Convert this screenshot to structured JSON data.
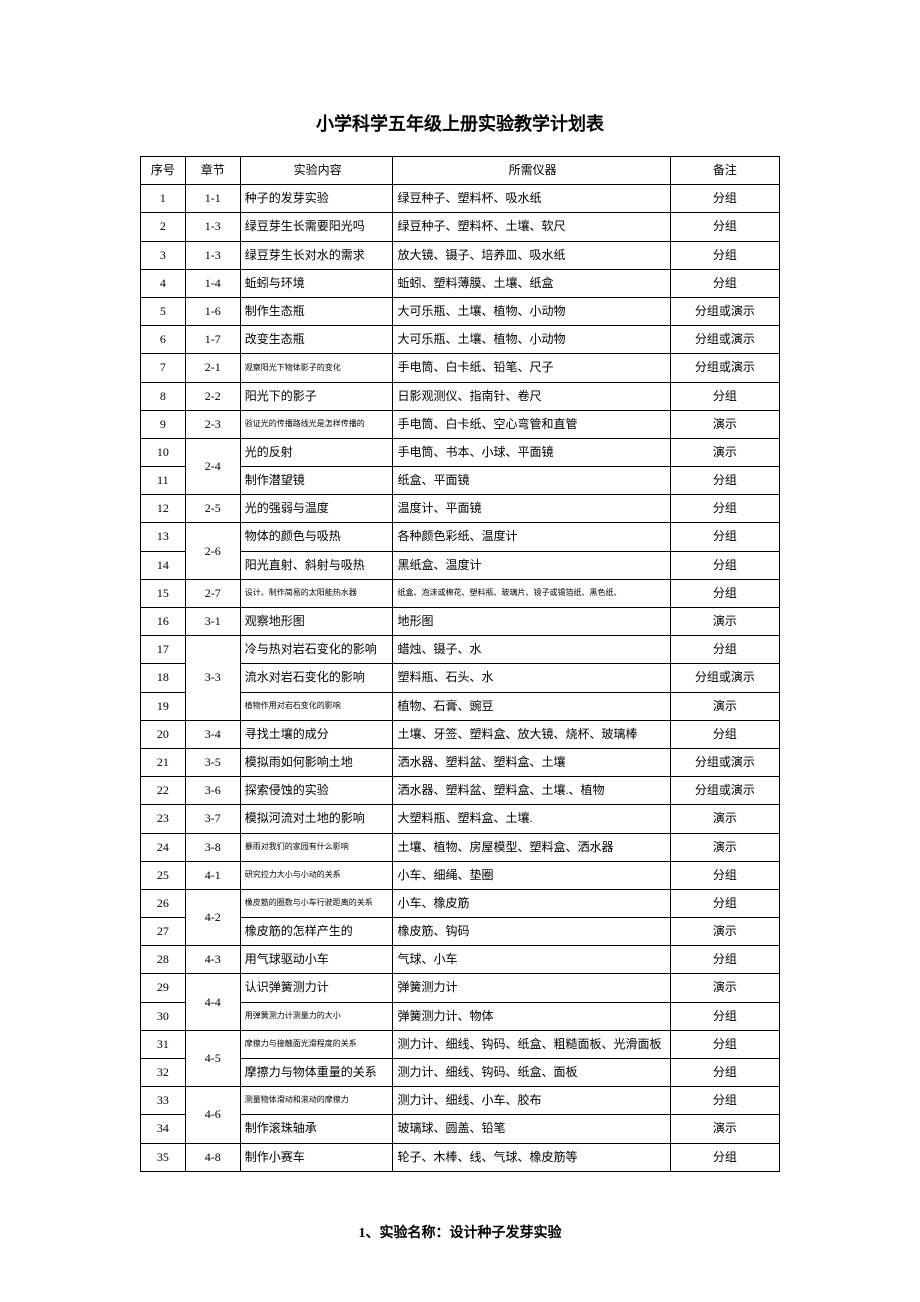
{
  "title": "小学科学五年级上册实验教学计划表",
  "columns": {
    "seq": "序号",
    "chapter": "章节",
    "content": "实验内容",
    "equipment": "所需仪器",
    "note": "备注"
  },
  "rows": [
    {
      "seq": "1",
      "chapter": "1-1",
      "content": "种子的发芽实验",
      "equipment": "绿豆种子、塑料杯、吸水纸",
      "note": "分组"
    },
    {
      "seq": "2",
      "chapter": "1-3",
      "content": "绿豆芽生长需要阳光吗",
      "equipment": "绿豆种子、塑料杯、土壤、软尺",
      "note": "分组"
    },
    {
      "seq": "3",
      "chapter": "1-3",
      "content": "绿豆芽生长对水的需求",
      "equipment": "放大镜、镊子、培养皿、吸水纸",
      "note": "分组"
    },
    {
      "seq": "4",
      "chapter": "1-4",
      "content": "蚯蚓与环境",
      "equipment": "蚯蚓、塑料薄膜、土壤、纸盒",
      "note": "分组"
    },
    {
      "seq": "5",
      "chapter": "1-6",
      "content": "制作生态瓶",
      "equipment": "大可乐瓶、土壤、植物、小动物",
      "note": "分组或演示"
    },
    {
      "seq": "6",
      "chapter": "1-7",
      "content": "改变生态瓶",
      "equipment": "大可乐瓶、土壤、植物、小动物",
      "note": "分组或演示"
    },
    {
      "seq": "7",
      "chapter": "2-1",
      "content": "观察阳光下物体影子的变化",
      "content_small": true,
      "equipment": "手电筒、白卡纸、铅笔、尺子",
      "note": "分组或演示"
    },
    {
      "seq": "8",
      "chapter": "2-2",
      "content": "阳光下的影子",
      "equipment": "日影观测仪、指南针、卷尺",
      "note": "分组"
    },
    {
      "seq": "9",
      "chapter": "2-3",
      "content": "验证光的传播路线光是怎样传播的",
      "content_small": true,
      "equipment": "手电筒、白卡纸、空心弯管和直管",
      "note": "演示"
    },
    {
      "seq": "10",
      "chapter": "2-4",
      "chapter_rowspan": 2,
      "content": "光的反射",
      "equipment": "手电筒、书本、小球、平面镜",
      "note": "演示"
    },
    {
      "seq": "11",
      "content": "制作潜望镜",
      "equipment": "纸盒、平面镜",
      "note": "分组"
    },
    {
      "seq": "12",
      "chapter": "2-5",
      "content": "光的强弱与温度",
      "equipment": "温度计、平面镜",
      "note": "分组"
    },
    {
      "seq": "13",
      "chapter": "2-6",
      "chapter_rowspan": 2,
      "content": "物体的颜色与吸热",
      "equipment": "各种颜色彩纸、温度计",
      "note": "分组"
    },
    {
      "seq": "14",
      "content": "阳光直射、斜射与吸热",
      "equipment": "黑纸盒、温度计",
      "note": "分组"
    },
    {
      "seq": "15",
      "chapter": "2-7",
      "content": "设计、制作简易的太阳能热水器",
      "content_small": true,
      "equipment": "纸盒、泡沫或棉花、塑料瓶、玻璃片、镜子或锡箔纸、黑色纸、",
      "equipment_small": true,
      "note": "分组"
    },
    {
      "seq": "16",
      "chapter": "3-1",
      "content": "观察地形图",
      "equipment": "地形图",
      "note": "演示"
    },
    {
      "seq": "17",
      "chapter": "3-3",
      "chapter_rowspan": 3,
      "content": "冷与热对岩石变化的影响",
      "equipment": "蜡烛、镊子、水",
      "note": "分组"
    },
    {
      "seq": "18",
      "content": "流水对岩石变化的影响",
      "equipment": "塑料瓶、石头、水",
      "note": "分组或演示"
    },
    {
      "seq": "19",
      "content": "植物作用对岩石变化的影响",
      "content_small": true,
      "equipment": "植物、石膏、豌豆",
      "note": "演示"
    },
    {
      "seq": "20",
      "chapter": "3-4",
      "content": "寻找土壤的成分",
      "equipment": "土壤、牙签、塑料盒、放大镜、烧杯、玻璃棒",
      "note": "分组"
    },
    {
      "seq": "21",
      "chapter": "3-5",
      "content": "模拟雨如何影响土地",
      "equipment": "洒水器、塑料盆、塑料盒、土壤",
      "note": "分组或演示"
    },
    {
      "seq": "22",
      "chapter": "3-6",
      "content": "探索侵蚀的实验",
      "equipment": "洒水器、塑料盆、塑料盒、土壤.、植物",
      "note": "分组或演示"
    },
    {
      "seq": "23",
      "chapter": "3-7",
      "content": "模拟河流对土地的影响",
      "equipment": "大塑料瓶、塑料盒、土壤.",
      "note": "演示"
    },
    {
      "seq": "24",
      "chapter": "3-8",
      "content": "暴雨对我们的家园有什么影响",
      "content_small": true,
      "equipment": "土壤、植物、房屋模型、塑料盒、洒水器",
      "note": "演示"
    },
    {
      "seq": "25",
      "chapter": "4-1",
      "content": "研究拉力大小与小动的关系",
      "content_small": true,
      "equipment": "小车、细绳、垫圈",
      "note": "分组"
    },
    {
      "seq": "26",
      "chapter": "4-2",
      "chapter_rowspan": 2,
      "content": "橡皮筋的圈数与小车行驶距离的关系",
      "content_small": true,
      "equipment": "小车、橡皮筋",
      "note": "分组"
    },
    {
      "seq": "27",
      "content": "橡皮筋的怎样产生的",
      "equipment": "橡皮筋、钩码",
      "note": "演示"
    },
    {
      "seq": "28",
      "chapter": "4-3",
      "content": "用气球驱动小车",
      "equipment": "气球、小车",
      "note": "分组"
    },
    {
      "seq": "29",
      "chapter": "4-4",
      "chapter_rowspan": 2,
      "content": "认识弹簧测力计",
      "equipment": "弹簧测力计",
      "note": "演示"
    },
    {
      "seq": "30",
      "content": "用弹簧测力计测量力的大小",
      "content_small": true,
      "equipment": "弹簧测力计、物体",
      "note": "分组"
    },
    {
      "seq": "31",
      "chapter": "4-5",
      "chapter_rowspan": 2,
      "content": "摩擦力与接触面光滑程度的关系",
      "content_small": true,
      "equipment": "测力计、细线、钩码、纸盒、粗糙面板、光滑面板",
      "note": "分组"
    },
    {
      "seq": "32",
      "content": "摩擦力与物体重量的关系",
      "equipment": "测力计、细线、钩码、纸盒、面板",
      "note": "分组"
    },
    {
      "seq": "33",
      "chapter": "4-6",
      "chapter_rowspan": 2,
      "content": "测量物体滑动和滚动的摩擦力",
      "content_small": true,
      "equipment": "测力计、细线、小车、胶布",
      "note": "分组"
    },
    {
      "seq": "34",
      "content": "制作滚珠轴承",
      "equipment": "玻璃球、圆盖、铅笔",
      "note": "演示"
    },
    {
      "seq": "35",
      "chapter": "4-8",
      "content": "制作小赛车",
      "equipment": "轮子、木棒、线、气球、橡皮筋等",
      "note": "分组"
    }
  ],
  "footer": "1、实验名称：设计种子发芽实验"
}
